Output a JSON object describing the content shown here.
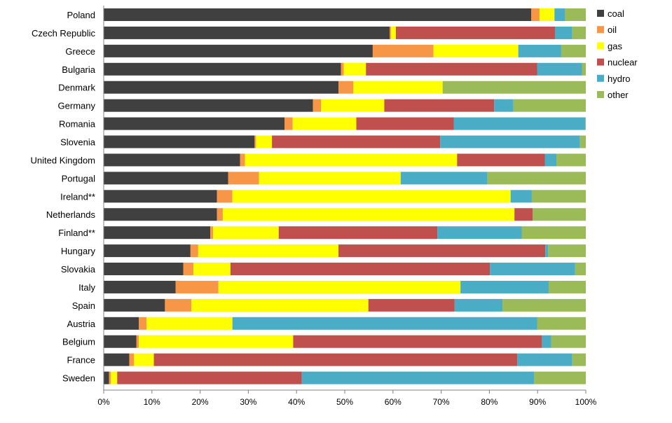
{
  "chart_data": {
    "type": "bar",
    "orientation": "horizontal",
    "stacked": "percent",
    "title": "",
    "xlabel": "",
    "ylabel": "",
    "xlim": [
      0,
      100
    ],
    "x_ticks": [
      "0%",
      "10%",
      "20%",
      "30%",
      "40%",
      "50%",
      "60%",
      "70%",
      "80%",
      "90%",
      "100%"
    ],
    "grid": false,
    "legend_position": "right",
    "categories": [
      "Poland",
      "Czech Republic",
      "Greece",
      "Bulgaria",
      "Denmark",
      "Germany",
      "Romania",
      "Slovenia",
      "United Kingdom",
      "Portugal",
      "Ireland**",
      "Netherlands",
      "Finland**",
      "Hungary",
      "Slovakia",
      "Italy",
      "Spain",
      "Austria",
      "Belgium",
      "France",
      "Sweden"
    ],
    "series": [
      {
        "name": "coal",
        "color": "#404040",
        "values": [
          88.7,
          59.3,
          55.8,
          49.2,
          48.7,
          43.4,
          37.5,
          31.3,
          28.3,
          25.8,
          23.5,
          23.5,
          22.1,
          18.0,
          16.5,
          14.9,
          12.7,
          7.3,
          6.8,
          5.3,
          1.1
        ]
      },
      {
        "name": "oil",
        "color": "#F79646",
        "values": [
          1.7,
          0.3,
          12.6,
          0.6,
          3.1,
          1.7,
          1.7,
          0.3,
          1.0,
          6.4,
          3.2,
          1.2,
          0.6,
          1.6,
          2.1,
          8.9,
          5.5,
          1.6,
          0.5,
          1.0,
          0.4
        ]
      },
      {
        "name": "gas",
        "color": "#FFFF00",
        "values": [
          3.1,
          1.0,
          17.6,
          4.6,
          18.5,
          13.1,
          13.2,
          3.3,
          44.0,
          29.4,
          57.7,
          60.5,
          13.6,
          29.1,
          7.7,
          50.2,
          36.7,
          17.8,
          32.0,
          4.1,
          1.3
        ]
      },
      {
        "name": "nuclear",
        "color": "#C0504D",
        "values": [
          0,
          33.0,
          0,
          35.5,
          0,
          22.8,
          20.2,
          34.9,
          18.2,
          0,
          0,
          3.8,
          32.9,
          42.9,
          53.8,
          0,
          17.9,
          0,
          51.6,
          75.4,
          38.3
        ]
      },
      {
        "name": "hydro",
        "color": "#4BACC6",
        "values": [
          2.2,
          3.6,
          8.9,
          9.3,
          0,
          4.0,
          27.3,
          29.0,
          2.4,
          18.0,
          4.4,
          0,
          17.5,
          0.6,
          17.7,
          18.3,
          9.9,
          63.2,
          1.9,
          11.4,
          48.2
        ]
      },
      {
        "name": "other",
        "color": "#9BBB59",
        "values": [
          4.3,
          2.8,
          5.1,
          0.8,
          29.7,
          15.0,
          0.1,
          1.2,
          6.1,
          20.4,
          11.2,
          11.0,
          13.3,
          7.8,
          2.2,
          7.7,
          17.3,
          10.1,
          7.2,
          2.8,
          10.7
        ]
      }
    ]
  }
}
